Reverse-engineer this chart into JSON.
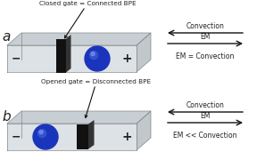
{
  "background_color": "#ffffff",
  "panel_a_label": "a",
  "panel_b_label": "b",
  "label_a_text": "Closed gate = Connected BPE",
  "label_b_text": "Opened gate = Disconnected BPE",
  "arrow_a_text1": "Convection",
  "arrow_a_text2": "EM",
  "arrow_a_eq": "EM = Convection",
  "arrow_b_text1": "Convection",
  "arrow_b_text2": "EM",
  "arrow_b_eq": "EM << Convection",
  "minus_label": "−",
  "plus_label": "+",
  "channel_face_color": "#dce2e6",
  "channel_top_color": "#c8cfd4",
  "channel_right_color": "#c0c8cc",
  "channel_edge_color": "#888888",
  "sphere_color": "#1a35bb",
  "sphere_highlight": "#4466dd",
  "gate_color": "#111111",
  "text_color": "#222222",
  "arrow_color": "#111111"
}
